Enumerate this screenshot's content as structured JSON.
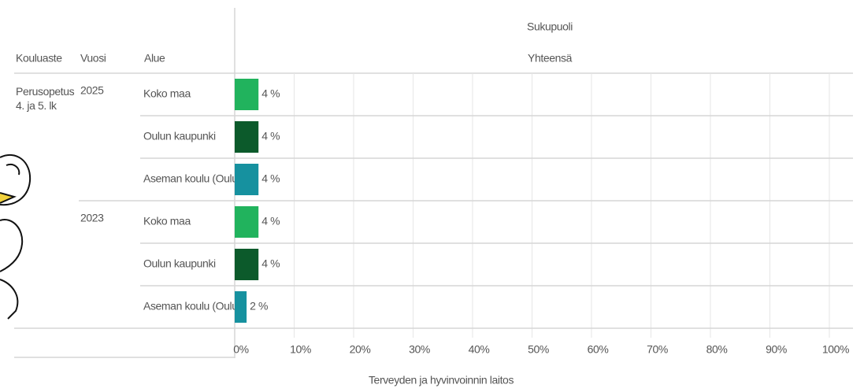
{
  "chart_data": {
    "type": "bar",
    "orientation": "horizontal",
    "column_headers": [
      "Kouluaste",
      "Vuosi",
      "Alue"
    ],
    "series_header": "Sukupuoli",
    "school_level": "Perusopetus 4. ja 5. lk",
    "years": [
      "2025",
      "2023"
    ],
    "categories": [
      "Koko maa",
      "Oulun kaupunki",
      "Aseman koulu (Oulu)",
      "Koko maa",
      "Oulun kaupunki",
      "Aseman koulu (Oulu)"
    ],
    "series": [
      {
        "name": "Yhteensä",
        "values": [
          4,
          4,
          4,
          4,
          4,
          2
        ],
        "value_labels": [
          "4 %",
          "4 %",
          "4 %",
          "4 %",
          "4 %",
          "2 %"
        ],
        "colors": [
          "#21b35d",
          "#0c5a2b",
          "#16919f",
          "#21b35d",
          "#0c5a2b",
          "#16919f"
        ]
      }
    ],
    "xlim": [
      0,
      100
    ],
    "xticks": [
      {
        "value": 0,
        "label": "0%"
      },
      {
        "value": 10,
        "label": "10%"
      },
      {
        "value": 20,
        "label": "20%"
      },
      {
        "value": 30,
        "label": "30%"
      },
      {
        "value": 40,
        "label": "40%"
      },
      {
        "value": 50,
        "label": "50%"
      },
      {
        "value": 60,
        "label": "60%"
      },
      {
        "value": 70,
        "label": "70%"
      },
      {
        "value": 80,
        "label": "80%"
      },
      {
        "value": 90,
        "label": "90%"
      },
      {
        "value": 100,
        "label": "100%"
      }
    ],
    "grid": true,
    "source": "Terveyden ja hyvinvoinnin laitos"
  }
}
